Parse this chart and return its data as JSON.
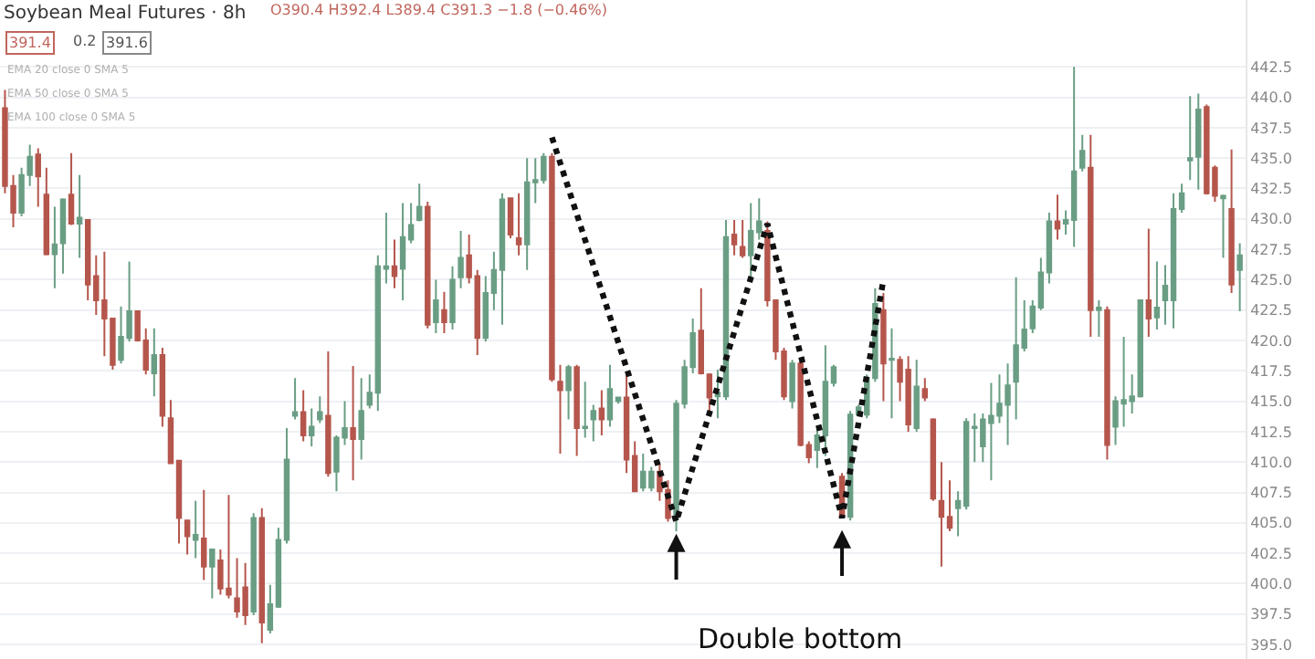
{
  "chart_data": {
    "type": "candlestick",
    "title": "Soybean Meal Futures · 8h",
    "annotations": [
      "O390.4 H392.4 L389.4 C391.3 −1.8 (−0.46%)",
      "391.4",
      "0.2",
      "391.6",
      "EMA 20 close 0 SMA 5",
      "EMA 50 close 0 SMA 5",
      "EMA 100 close 0 SMA 5",
      "Double bottom"
    ],
    "categories": [
      null,
      null,
      null,
      null,
      null,
      null,
      null,
      null,
      null,
      null,
      null,
      null,
      null,
      null,
      null,
      null,
      null,
      null,
      null,
      null,
      null,
      null,
      null,
      null,
      null,
      null,
      null,
      null,
      null,
      null,
      null,
      null,
      null,
      null,
      null,
      null,
      null,
      null,
      null,
      null,
      null,
      null,
      null,
      null,
      null,
      null,
      null,
      null,
      null,
      null,
      null,
      null,
      null,
      null,
      null,
      null,
      null,
      null,
      null,
      null,
      null,
      null,
      null,
      null,
      null,
      null,
      null,
      null,
      null,
      null,
      null,
      null,
      null,
      null,
      null,
      null,
      null,
      null,
      null,
      null,
      null,
      null,
      null,
      null,
      null,
      null,
      null,
      null,
      null,
      null,
      null,
      null,
      null,
      null,
      null,
      null,
      null,
      null,
      null,
      null,
      null,
      null,
      null,
      null,
      null,
      null,
      null,
      null,
      null,
      null,
      null,
      null,
      null,
      null,
      null,
      null,
      null,
      null,
      null,
      null,
      null,
      null,
      null,
      null,
      null,
      null,
      null,
      null,
      null,
      null,
      null,
      null,
      null,
      null,
      null,
      null,
      null,
      null,
      null,
      null,
      null,
      null,
      null,
      null,
      null,
      null,
      null,
      null,
      null,
      null
    ],
    "ohlc": [
      [
        439.1,
        440.6,
        432.1,
        432.7
      ],
      [
        432.7,
        433.6,
        429.3,
        430.5
      ],
      [
        430.5,
        434.2,
        430.2,
        433.6
      ],
      [
        433.6,
        436.1,
        432.7,
        435.1
      ],
      [
        435.3,
        435.8,
        431.0,
        433.5
      ],
      [
        432.0,
        434.2,
        427.0,
        427.1
      ],
      [
        427.1,
        431.0,
        424.3,
        427.9
      ],
      [
        428.0,
        431.7,
        425.5,
        431.6
      ],
      [
        432.0,
        435.4,
        429.5,
        429.6
      ],
      [
        429.6,
        433.6,
        426.8,
        430.1
      ],
      [
        429.9,
        429.9,
        423.3,
        424.6
      ],
      [
        425.3,
        427.0,
        422.1,
        423.3
      ],
      [
        423.3,
        427.3,
        418.7,
        421.8
      ],
      [
        421.8,
        421.8,
        417.6,
        418.0
      ],
      [
        418.4,
        422.8,
        418.1,
        420.3
      ],
      [
        420.2,
        426.5,
        419.9,
        422.4
      ],
      [
        422.4,
        422.4,
        419.9,
        420.0
      ],
      [
        420.0,
        421.0,
        417.2,
        417.6
      ],
      [
        417.3,
        421.0,
        415.4,
        418.8
      ],
      [
        418.8,
        419.4,
        412.9,
        413.8
      ],
      [
        413.6,
        415.1,
        409.9,
        409.9
      ],
      [
        410.1,
        410.1,
        403.3,
        405.4
      ],
      [
        405.2,
        405.2,
        402.4,
        403.9
      ],
      [
        403.6,
        406.8,
        402.1,
        404.0
      ],
      [
        403.7,
        407.7,
        400.3,
        401.4
      ],
      [
        401.4,
        402.8,
        398.8,
        402.8
      ],
      [
        401.9,
        402.8,
        399.1,
        399.6
      ],
      [
        399.6,
        407.3,
        398.8,
        399.1
      ],
      [
        398.8,
        402.1,
        397.2,
        397.7
      ],
      [
        399.7,
        401.7,
        396.6,
        397.4
      ],
      [
        397.7,
        405.8,
        397.4,
        405.4
      ],
      [
        405.4,
        406.2,
        395.1,
        396.8
      ],
      [
        396.2,
        399.9,
        395.9,
        398.3
      ],
      [
        398.1,
        404.6,
        398.0,
        403.6
      ],
      [
        403.6,
        412.8,
        403.3,
        410.2
      ],
      [
        413.8,
        416.9,
        413.5,
        414.1
      ],
      [
        414.1,
        415.9,
        411.7,
        412.2
      ],
      [
        412.2,
        414.4,
        411.3,
        412.9
      ],
      [
        413.5,
        415.4,
        413.2,
        414.1
      ],
      [
        413.8,
        419.1,
        408.8,
        409.1
      ],
      [
        409.2,
        412.2,
        407.6,
        412.0
      ],
      [
        412.0,
        415.0,
        411.4,
        412.8
      ],
      [
        412.8,
        417.9,
        408.5,
        411.9
      ],
      [
        411.9,
        416.9,
        410.2,
        414.2
      ],
      [
        414.7,
        417.2,
        414.4,
        415.7
      ],
      [
        415.7,
        427.0,
        414.2,
        426.1
      ],
      [
        425.9,
        430.5,
        424.7,
        426.1
      ],
      [
        426.1,
        428.3,
        424.3,
        425.3
      ],
      [
        425.9,
        431.3,
        423.3,
        428.5
      ],
      [
        428.3,
        431.3,
        428.0,
        429.5
      ],
      [
        429.9,
        432.9,
        429.8,
        431.0
      ],
      [
        431.0,
        431.4,
        421.0,
        421.3
      ],
      [
        421.5,
        425.0,
        420.6,
        423.3
      ],
      [
        422.5,
        424.0,
        420.6,
        421.5
      ],
      [
        421.5,
        426.1,
        420.9,
        425.0
      ],
      [
        425.2,
        429.0,
        424.3,
        426.8
      ],
      [
        427.0,
        428.7,
        424.7,
        425.2
      ],
      [
        425.3,
        425.8,
        418.8,
        420.2
      ],
      [
        420.2,
        425.3,
        419.9,
        423.9
      ],
      [
        423.9,
        427.3,
        422.5,
        425.8
      ],
      [
        425.8,
        432.1,
        421.3,
        431.6
      ],
      [
        431.7,
        431.7,
        428.4,
        428.7
      ],
      [
        428.4,
        432.1,
        427.0,
        427.9
      ],
      [
        427.9,
        435.0,
        425.8,
        433.0
      ],
      [
        433.0,
        435.0,
        431.3,
        433.2
      ],
      [
        433.2,
        435.4,
        432.9,
        435.1
      ],
      [
        435.1,
        435.4,
        416.6,
        416.8
      ],
      [
        416.6,
        418.0,
        410.7,
        415.9
      ],
      [
        415.9,
        418.0,
        413.5,
        417.8
      ],
      [
        417.8,
        418.0,
        410.5,
        412.8
      ],
      [
        412.8,
        416.6,
        412.0,
        412.9
      ],
      [
        413.5,
        414.7,
        411.7,
        414.2
      ],
      [
        414.4,
        415.9,
        412.2,
        413.5
      ],
      [
        413.5,
        418.0,
        412.9,
        416.0
      ],
      [
        415.0,
        415.3,
        414.8,
        415.3
      ],
      [
        415.3,
        417.3,
        409.1,
        410.2
      ],
      [
        410.5,
        411.7,
        407.6,
        407.6
      ],
      [
        407.9,
        410.7,
        407.6,
        409.2
      ],
      [
        407.9,
        409.6,
        407.6,
        409.2
      ],
      [
        409.2,
        409.8,
        406.8,
        407.6
      ],
      [
        407.7,
        408.5,
        405.1,
        405.4
      ],
      [
        405.4,
        415.1,
        404.3,
        414.8
      ],
      [
        414.8,
        418.4,
        414.4,
        417.8
      ],
      [
        417.8,
        421.8,
        417.3,
        420.6
      ],
      [
        420.8,
        424.3,
        417.2,
        417.3
      ],
      [
        417.2,
        417.3,
        414.0,
        415.3
      ],
      [
        415.4,
        417.6,
        413.6,
        415.7
      ],
      [
        415.4,
        429.9,
        415.1,
        428.5
      ],
      [
        428.7,
        429.9,
        427.0,
        427.9
      ],
      [
        427.7,
        429.9,
        426.8,
        427.0
      ],
      [
        427.0,
        431.3,
        425.0,
        429.0
      ],
      [
        428.9,
        431.7,
        428.3,
        429.8
      ],
      [
        429.0,
        429.8,
        422.8,
        423.3
      ],
      [
        423.3,
        423.3,
        418.4,
        419.1
      ],
      [
        419.1,
        419.4,
        415.1,
        415.4
      ],
      [
        415.0,
        418.4,
        414.4,
        418.1
      ],
      [
        418.1,
        418.4,
        411.3,
        411.4
      ],
      [
        411.4,
        411.7,
        409.9,
        410.4
      ],
      [
        411.0,
        412.9,
        409.5,
        412.2
      ],
      [
        412.2,
        419.6,
        410.5,
        416.6
      ],
      [
        416.5,
        418.0,
        416.2,
        417.8
      ],
      [
        408.8,
        409.1,
        405.4,
        405.5
      ],
      [
        405.5,
        414.2,
        405.2,
        413.9
      ],
      [
        413.9,
        414.7,
        413.9,
        414.5
      ],
      [
        413.9,
        417.2,
        413.6,
        416.9
      ],
      [
        416.9,
        424.3,
        416.6,
        423.0
      ],
      [
        422.5,
        423.9,
        415.0,
        418.1
      ],
      [
        418.4,
        421.0,
        413.6,
        418.5
      ],
      [
        418.4,
        418.7,
        415.0,
        416.6
      ],
      [
        417.6,
        418.7,
        412.5,
        413.1
      ],
      [
        412.8,
        418.4,
        412.5,
        416.2
      ],
      [
        416.0,
        416.9,
        415.0,
        415.3
      ],
      [
        413.5,
        413.6,
        406.8,
        407.0
      ],
      [
        406.8,
        410.0,
        401.4,
        405.5
      ],
      [
        405.5,
        408.5,
        404.3,
        404.6
      ],
      [
        406.2,
        407.6,
        403.9,
        406.8
      ],
      [
        406.4,
        413.6,
        406.1,
        413.3
      ],
      [
        412.8,
        414.0,
        410.0,
        412.9
      ],
      [
        411.3,
        414.0,
        410.0,
        413.5
      ],
      [
        413.2,
        416.5,
        408.5,
        413.8
      ],
      [
        413.8,
        417.2,
        413.2,
        414.8
      ],
      [
        414.7,
        418.1,
        411.4,
        416.3
      ],
      [
        416.6,
        425.2,
        413.5,
        419.6
      ],
      [
        419.4,
        423.3,
        419.1,
        420.9
      ],
      [
        421.0,
        423.3,
        420.6,
        422.8
      ],
      [
        422.7,
        426.8,
        422.5,
        425.6
      ],
      [
        425.6,
        430.5,
        424.7,
        429.8
      ],
      [
        429.8,
        432.0,
        428.3,
        429.2
      ],
      [
        429.6,
        430.7,
        428.7,
        429.9
      ],
      [
        429.9,
        442.5,
        427.7,
        433.9
      ],
      [
        434.2,
        436.9,
        433.9,
        435.6
      ],
      [
        434.2,
        436.9,
        420.3,
        422.5
      ],
      [
        422.5,
        423.3,
        420.3,
        422.7
      ],
      [
        422.5,
        422.8,
        410.2,
        411.4
      ],
      [
        412.9,
        415.4,
        411.4,
        415.0
      ],
      [
        414.8,
        420.3,
        412.9,
        415.1
      ],
      [
        415.0,
        417.2,
        414.0,
        415.4
      ],
      [
        415.4,
        423.3,
        415.3,
        423.3
      ],
      [
        423.3,
        429.2,
        420.3,
        421.8
      ],
      [
        421.9,
        426.5,
        420.9,
        422.7
      ],
      [
        423.3,
        426.2,
        421.3,
        424.5
      ],
      [
        423.3,
        432.1,
        421.0,
        430.8
      ],
      [
        430.8,
        432.9,
        430.5,
        432.1
      ],
      [
        434.8,
        440.1,
        433.2,
        435.0
      ],
      [
        435.1,
        440.3,
        432.4,
        439.0
      ],
      [
        439.2,
        439.4,
        432.0,
        432.1
      ],
      [
        434.2,
        434.4,
        431.4,
        431.9
      ],
      [
        431.7,
        432.0,
        426.8,
        431.9
      ],
      [
        430.8,
        435.7,
        423.9,
        424.6
      ],
      [
        425.8,
        428.0,
        422.4,
        427.0
      ]
    ],
    "colors": [
      "#b5564c",
      "#b5564c",
      "#6a9e84",
      "#6a9e84",
      "#b5564c",
      "#b5564c",
      "#6a9e84",
      "#6a9e84",
      "#b5564c",
      "#6a9e84",
      "#b5564c",
      "#b5564c",
      "#b5564c",
      "#b5564c",
      "#6a9e84",
      "#6a9e84",
      "#b5564c",
      "#b5564c",
      "#6a9e84",
      "#b5564c",
      "#b5564c",
      "#b5564c",
      "#b5564c",
      "#6a9e84",
      "#b5564c",
      "#6a9e84",
      "#b5564c",
      "#b5564c",
      "#b5564c",
      "#b5564c",
      "#6a9e84",
      "#b5564c",
      "#6a9e84",
      "#6a9e84",
      "#6a9e84",
      "#6a9e84",
      "#b5564c",
      "#6a9e84",
      "#6a9e84",
      "#b5564c",
      "#6a9e84",
      "#6a9e84",
      "#b5564c",
      "#6a9e84",
      "#6a9e84",
      "#6a9e84",
      "#6a9e84",
      "#b5564c",
      "#6a9e84",
      "#6a9e84",
      "#6a9e84",
      "#b5564c",
      "#6a9e84",
      "#b5564c",
      "#6a9e84",
      "#6a9e84",
      "#b5564c",
      "#b5564c",
      "#6a9e84",
      "#6a9e84",
      "#6a9e84",
      "#b5564c",
      "#b5564c",
      "#6a9e84",
      "#6a9e84",
      "#6a9e84",
      "#b5564c",
      "#b5564c",
      "#6a9e84",
      "#b5564c",
      "#6a9e84",
      "#6a9e84",
      "#b5564c",
      "#6a9e84",
      "#6a9e84",
      "#b5564c",
      "#b5564c",
      "#6a9e84",
      "#6a9e84",
      "#b5564c",
      "#b5564c",
      "#6a9e84",
      "#6a9e84",
      "#6a9e84",
      "#b5564c",
      "#b5564c",
      "#6a9e84",
      "#6a9e84",
      "#b5564c",
      "#b5564c",
      "#6a9e84",
      "#6a9e84",
      "#b5564c",
      "#b5564c",
      "#b5564c",
      "#6a9e84",
      "#b5564c",
      "#b5564c",
      "#6a9e84",
      "#6a9e84",
      "#6a9e84",
      "#b5564c",
      "#6a9e84",
      "#6a9e84",
      "#6a9e84",
      "#6a9e84",
      "#b5564c",
      "#6a9e84",
      "#b5564c",
      "#b5564c",
      "#6a9e84",
      "#b5564c",
      "#b5564c",
      "#b5564c",
      "#b5564c",
      "#6a9e84",
      "#6a9e84",
      "#6a9e84",
      "#6a9e84",
      "#6a9e84",
      "#6a9e84",
      "#6a9e84",
      "#6a9e84",
      "#6a9e84",
      "#6a9e84",
      "#6a9e84",
      "#6a9e84",
      "#b5564c",
      "#6a9e84",
      "#6a9e84",
      "#6a9e84",
      "#b5564c",
      "#6a9e84",
      "#b5564c",
      "#6a9e84",
      "#6a9e84",
      "#6a9e84",
      "#6a9e84",
      "#b5564c",
      "#6a9e84",
      "#6a9e84",
      "#6a9e84",
      "#6a9e84",
      "#6a9e84",
      "#6a9e84",
      "#b5564c",
      "#b5564c",
      "#6a9e84",
      "#b5564c",
      "#6a9e84"
    ],
    "series": [
      {
        "type": "line",
        "values": [
          null,
          null,
          null,
          null,
          null,
          null,
          null,
          null,
          null,
          null,
          null,
          null,
          null,
          null,
          null,
          null,
          null,
          null,
          null,
          null,
          null,
          null,
          null,
          null,
          null,
          null,
          null,
          null,
          null,
          null,
          null,
          null,
          null,
          null,
          null,
          null,
          null,
          null,
          null,
          null,
          null,
          null,
          null,
          null,
          null,
          null,
          null,
          null,
          null,
          null,
          null,
          null,
          null,
          null,
          null,
          null,
          null,
          null,
          null,
          null,
          null,
          null,
          null,
          null,
          null,
          null,
          436.7,
          null,
          null,
          null,
          null,
          null,
          null,
          null,
          null,
          null,
          null,
          null,
          null,
          null,
          null,
          405.1,
          null,
          null,
          null,
          null,
          null,
          null,
          null,
          null,
          null,
          null,
          429.6,
          null,
          null,
          null,
          null,
          null,
          null,
          null,
          null,
          405.4,
          null,
          null,
          null,
          null,
          425.0,
          null,
          null,
          null,
          null,
          null,
          null,
          null,
          null,
          null,
          null,
          null,
          null,
          null,
          null,
          null,
          null,
          null,
          null,
          null,
          null,
          null,
          null,
          null,
          null,
          null,
          null,
          null,
          null,
          null,
          null,
          null,
          null,
          null,
          null,
          null,
          null,
          null,
          null,
          null,
          null,
          null,
          null,
          null
        ],
        "color": "#111111",
        "line_style": "dotted"
      }
    ],
    "ylim": [
      393.8,
      448.0
    ],
    "yticks": [
      {
        "value": 395,
        "label": "395.0"
      },
      {
        "value": 397.5,
        "label": "397.5"
      },
      {
        "value": 400,
        "label": "400.0"
      },
      {
        "value": 402.5,
        "label": "402.5"
      },
      {
        "value": 405,
        "label": "405.0"
      },
      {
        "value": 407.5,
        "label": "407.5"
      },
      {
        "value": 410,
        "label": "410.0"
      },
      {
        "value": 412.5,
        "label": "412.5"
      },
      {
        "value": 415,
        "label": "415.0"
      },
      {
        "value": 417.5,
        "label": "417.5"
      },
      {
        "value": 420,
        "label": "420.0"
      },
      {
        "value": 422.5,
        "label": "422.5"
      },
      {
        "value": 425,
        "label": "425.0"
      },
      {
        "value": 427.5,
        "label": "427.5"
      },
      {
        "value": 430,
        "label": "430.0"
      },
      {
        "value": 432.5,
        "label": "432.5"
      },
      {
        "value": 435,
        "label": "435.0"
      },
      {
        "value": 437.5,
        "label": "437.5"
      },
      {
        "value": 440,
        "label": "440.0"
      },
      {
        "value": 442.5,
        "label": "442.5"
      }
    ],
    "grid": "y"
  }
}
